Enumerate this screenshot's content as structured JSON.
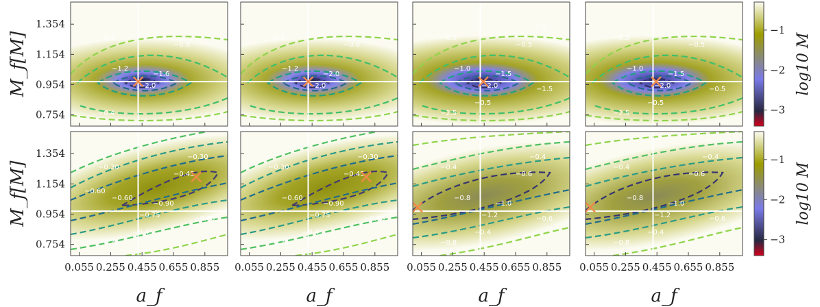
{
  "figure": {
    "xlabel": "a_f",
    "ylabel": "M_f[M]",
    "colorbar_label": "log10 M",
    "rows": 2,
    "cols": 4
  },
  "chart_data": {
    "type": "heatmap",
    "xlabel": "a_f",
    "ylabel": "M_f[M]",
    "x_ticks": [
      "0.055",
      "0.255",
      "0.455",
      "0.655",
      "0.855"
    ],
    "y_ticks": [
      "0.754",
      "0.954",
      "1.154",
      "1.354"
    ],
    "xlim": [
      0.0,
      1.0
    ],
    "ylim": [
      0.68,
      1.5
    ],
    "colorbar": {
      "label": "log10 M",
      "ticks": [
        "−1",
        "−2",
        "−3"
      ],
      "range": [
        -3.4,
        -0.3
      ],
      "colors": [
        "#d6001c",
        "#272740",
        "#7a7ae8",
        "#9c9c00",
        "#fbfbf1"
      ]
    },
    "colors": {
      "crosshair": "#ffffff",
      "marker": "#f08a4b"
    },
    "panels": [
      {
        "row": 0,
        "col": 0,
        "crosshair": [
          0.43,
          0.974
        ],
        "marker": [
          0.43,
          0.974
        ],
        "contour_labels": [
          "−0.4",
          "−0.8",
          "−1.2",
          "−1.6",
          "−2.0",
          "−0.4"
        ]
      },
      {
        "row": 0,
        "col": 1,
        "crosshair": [
          0.43,
          0.974
        ],
        "marker": [
          0.43,
          0.974
        ],
        "contour_labels": [
          "−0.4",
          "−0.8",
          "−1.2",
          "−2.0",
          "−2.0"
        ]
      },
      {
        "row": 0,
        "col": 2,
        "crosshair": [
          0.43,
          0.974
        ],
        "marker": [
          0.45,
          0.974
        ],
        "contour_labels": [
          "−0.5",
          "−0.5",
          "−1.0",
          "−1.5",
          "−2.0",
          "−2.5",
          "−1.5",
          "−0.5",
          "−1.5"
        ]
      },
      {
        "row": 0,
        "col": 3,
        "crosshair": [
          0.43,
          0.974
        ],
        "marker": [
          0.45,
          0.974
        ],
        "contour_labels": [
          "−0.5",
          "−0.5",
          "−1.0",
          "−1.5",
          "−2.0",
          "−2.5",
          "−0.5",
          "−0.5"
        ]
      },
      {
        "row": 1,
        "col": 0,
        "crosshair": [
          0.43,
          0.974
        ],
        "marker": [
          0.8,
          1.2
        ],
        "contour_labels": [
          "−0.30",
          "−0.45",
          "−0.60",
          "−0.90",
          "−0.75",
          "−0.75",
          "−0.60",
          "−0.45",
          "−0.30",
          "−0.60"
        ]
      },
      {
        "row": 1,
        "col": 1,
        "crosshair": [
          0.43,
          0.974
        ],
        "marker": [
          0.8,
          1.2
        ],
        "contour_labels": [
          "−0.30",
          "−0.45",
          "−0.60",
          "−0.90",
          "−0.75",
          "−0.75",
          "−0.60",
          "−0.45",
          "−0.30"
        ]
      },
      {
        "row": 1,
        "col": 2,
        "crosshair": [
          0.43,
          0.974
        ],
        "marker": [
          0.03,
          1.0
        ],
        "contour_labels": [
          "−0.4",
          "−0.6",
          "−0.8",
          "−1.0",
          "−1.2",
          "−0.8",
          "−0.6",
          "−0.4",
          "−0.4"
        ]
      },
      {
        "row": 1,
        "col": 3,
        "crosshair": [
          0.43,
          0.974
        ],
        "marker": [
          0.03,
          1.0
        ],
        "contour_labels": [
          "−0.4",
          "−0.6",
          "−0.8",
          "−1.0",
          "−1.2",
          "−0.8",
          "−0.6",
          "−0.4",
          "−0.4"
        ]
      }
    ]
  }
}
